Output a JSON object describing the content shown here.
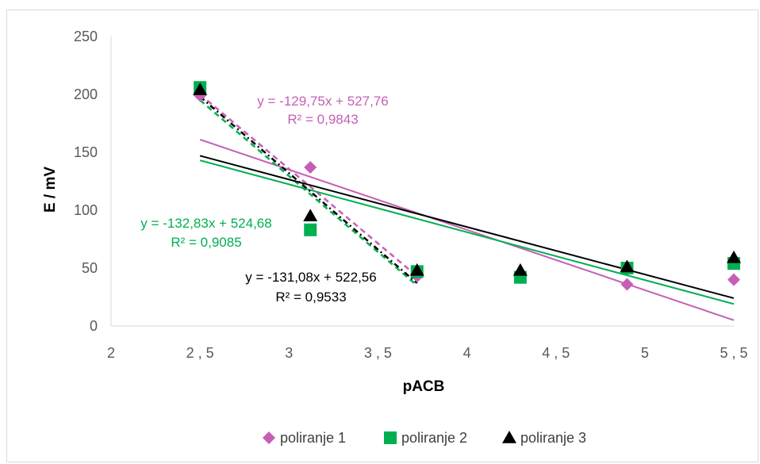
{
  "chart_data": {
    "type": "scatter",
    "xlabel": "pACB",
    "ylabel": "E / mV",
    "xlim": [
      2,
      5.5
    ],
    "ylim": [
      0,
      250
    ],
    "x_ticks": [
      "2",
      "2,5",
      "3",
      "3,5",
      "4",
      "4,5",
      "5",
      "5,5"
    ],
    "x_tick_values": [
      2,
      2.5,
      3,
      3.5,
      4,
      4.5,
      5,
      5.5
    ],
    "y_ticks": [
      "0",
      "50",
      "100",
      "150",
      "200",
      "250"
    ],
    "y_tick_values": [
      0,
      50,
      100,
      150,
      200,
      250
    ],
    "grid": false,
    "legend_position": "bottom",
    "series": [
      {
        "name": "poliranje 1",
        "marker": "diamond",
        "color": "#c55fb5",
        "points": [
          [
            2.5,
            199
          ],
          [
            3.12,
            137
          ],
          [
            3.72,
            43
          ],
          [
            4.3,
            44
          ],
          [
            4.9,
            36
          ],
          [
            5.5,
            40
          ]
        ],
        "trend_full": [
          [
            2.5,
            161
          ],
          [
            5.5,
            5
          ]
        ],
        "trend_part": [
          [
            2.5,
            200
          ],
          [
            3.72,
            43
          ]
        ],
        "equation": "y = -129,75x + 527,76",
        "r2": "R² = 0,9843"
      },
      {
        "name": "poliranje 2",
        "marker": "square",
        "color": "#00b050",
        "points": [
          [
            2.5,
            206
          ],
          [
            3.12,
            83
          ],
          [
            3.72,
            47
          ],
          [
            4.3,
            42
          ],
          [
            4.9,
            50
          ],
          [
            5.5,
            54
          ]
        ],
        "trend_full": [
          [
            2.5,
            143
          ],
          [
            5.5,
            19
          ]
        ],
        "trend_part": [
          [
            2.5,
            195
          ],
          [
            3.72,
            35
          ]
        ],
        "equation": "y = -132,83x + 524,68",
        "r2": "R² = 0,9085"
      },
      {
        "name": "poliranje 3",
        "marker": "triangle",
        "color": "#000000",
        "points": [
          [
            2.5,
            204
          ],
          [
            3.12,
            95
          ],
          [
            3.72,
            48
          ],
          [
            4.3,
            48
          ],
          [
            4.9,
            51
          ],
          [
            5.5,
            59
          ]
        ],
        "trend_full": [
          [
            2.5,
            147
          ],
          [
            5.5,
            24
          ]
        ],
        "trend_part": [
          [
            2.5,
            198
          ],
          [
            3.72,
            37
          ]
        ],
        "equation": "y = -131,08x + 522,56",
        "r2": "R² = 0,9533"
      }
    ]
  }
}
